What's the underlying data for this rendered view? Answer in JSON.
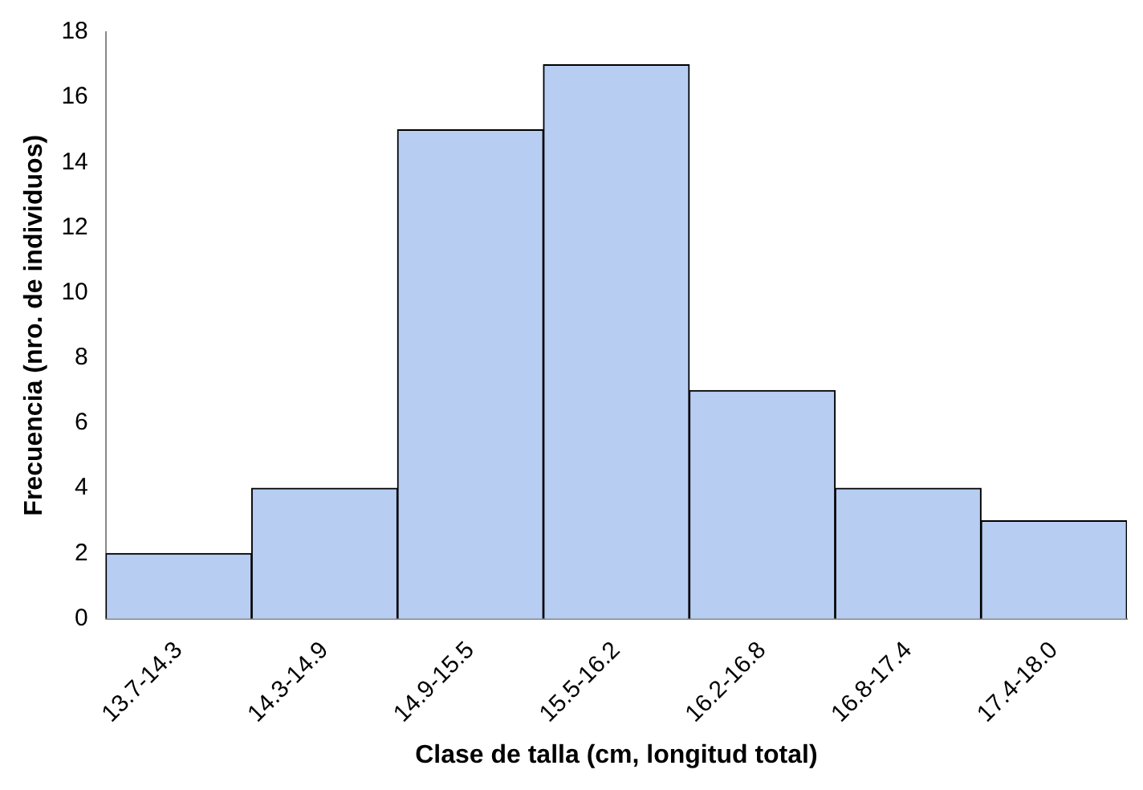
{
  "chart_data": {
    "type": "bar",
    "xlabel": "Clase de talla (cm, longitud total)",
    "ylabel": "Frecuencia (nro. de individuos)",
    "categories": [
      "13.7-14.3",
      "14.3-14.9",
      "14.9-15.5",
      "15.5-16.2",
      "16.2-16.8",
      "16.8-17.4",
      "17.4-18.0"
    ],
    "values": [
      2,
      4,
      15,
      17,
      7,
      4,
      3
    ],
    "color": "#b7cdf2",
    "ylim": [
      0,
      18
    ],
    "yticks": [
      0,
      2,
      4,
      6,
      8,
      10,
      12,
      14,
      16,
      18
    ],
    "grid": false,
    "legend": false
  }
}
